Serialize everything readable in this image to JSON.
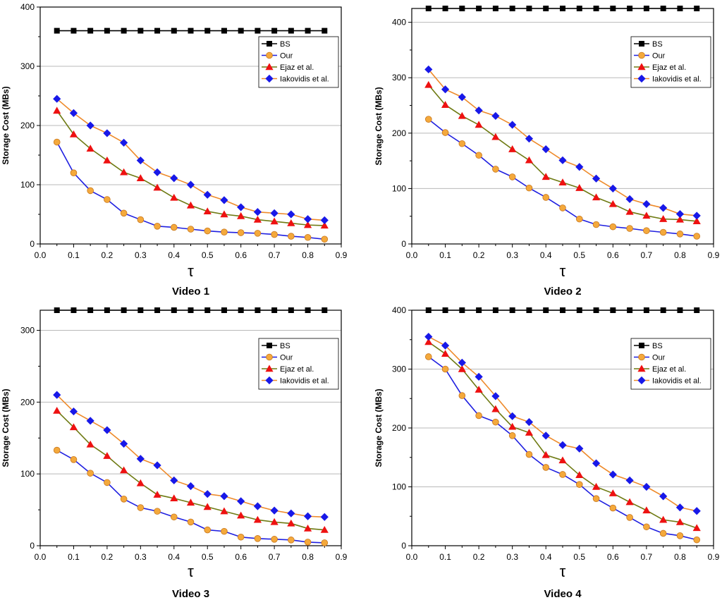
{
  "chart_data": [
    {
      "type": "line",
      "title": "Video 1",
      "xlabel": "τ",
      "ylabel": "Storage Cost (MBs)",
      "xlim": [
        0.0,
        0.9
      ],
      "ylim": [
        0,
        400
      ],
      "xticks": [
        "0.0",
        "0.1",
        "0.2",
        "0.3",
        "0.4",
        "0.5",
        "0.6",
        "0.7",
        "0.8",
        "0.9"
      ],
      "yticks": [
        "0",
        "100",
        "200",
        "300",
        "400"
      ],
      "legend_position": "top-right",
      "x": [
        0.05,
        0.1,
        0.15,
        0.2,
        0.25,
        0.3,
        0.35,
        0.4,
        0.45,
        0.5,
        0.55,
        0.6,
        0.65,
        0.7,
        0.75,
        0.8,
        0.85
      ],
      "series": [
        {
          "name": "BS",
          "values": [
            360,
            360,
            360,
            360,
            360,
            360,
            360,
            360,
            360,
            360,
            360,
            360,
            360,
            360,
            360,
            360,
            360
          ]
        },
        {
          "name": "Our",
          "values": [
            172,
            120,
            90,
            75,
            52,
            41,
            30,
            28,
            25,
            22,
            20,
            19,
            18,
            16,
            13,
            11,
            8
          ]
        },
        {
          "name": "Ejaz et al.",
          "values": [
            225,
            185,
            161,
            141,
            121,
            111,
            95,
            78,
            65,
            55,
            50,
            47,
            41,
            38,
            35,
            32,
            31
          ]
        },
        {
          "name": "Iakovidis  et al.",
          "values": [
            245,
            221,
            200,
            187,
            171,
            141,
            121,
            111,
            100,
            83,
            74,
            62,
            54,
            52,
            50,
            42,
            40
          ]
        }
      ]
    },
    {
      "type": "line",
      "title": "Video 2",
      "xlabel": "τ",
      "ylabel": "Storage Cost (MBs)",
      "xlim": [
        0.0,
        0.9
      ],
      "ylim": [
        0,
        425
      ],
      "xticks": [
        "0.0",
        "0.1",
        "0.2",
        "0.3",
        "0.4",
        "0.5",
        "0.6",
        "0.7",
        "0.8",
        "0.9"
      ],
      "yticks": [
        "0",
        "100",
        "200",
        "300",
        "400"
      ],
      "legend_position": "top-right",
      "x": [
        0.05,
        0.1,
        0.15,
        0.2,
        0.25,
        0.3,
        0.35,
        0.4,
        0.45,
        0.5,
        0.55,
        0.6,
        0.65,
        0.7,
        0.75,
        0.8,
        0.85
      ],
      "series": [
        {
          "name": "BS",
          "values": [
            425,
            425,
            425,
            425,
            425,
            425,
            425,
            425,
            425,
            425,
            425,
            425,
            425,
            425,
            425,
            425,
            425
          ]
        },
        {
          "name": "Our",
          "values": [
            225,
            201,
            181,
            160,
            135,
            121,
            101,
            84,
            65,
            45,
            35,
            31,
            28,
            24,
            21,
            18,
            14
          ]
        },
        {
          "name": "Ejaz et al.",
          "values": [
            287,
            251,
            231,
            215,
            193,
            171,
            151,
            121,
            111,
            101,
            84,
            72,
            58,
            51,
            45,
            44,
            41
          ]
        },
        {
          "name": "Iakovidis  et al.",
          "values": [
            315,
            279,
            265,
            241,
            231,
            215,
            190,
            171,
            151,
            139,
            118,
            100,
            81,
            72,
            65,
            54,
            51
          ]
        }
      ]
    },
    {
      "type": "line",
      "title": "Video 3",
      "xlabel": "τ",
      "ylabel": "Storage Cost (MBs)",
      "xlim": [
        0.0,
        0.9
      ],
      "ylim": [
        0,
        328
      ],
      "xticks": [
        "0.0",
        "0.1",
        "0.2",
        "0.3",
        "0.4",
        "0.5",
        "0.6",
        "0.7",
        "0.8",
        "0.9"
      ],
      "yticks": [
        "0",
        "100",
        "200",
        "300"
      ],
      "legend_position": "top-right",
      "x": [
        0.05,
        0.1,
        0.15,
        0.2,
        0.25,
        0.3,
        0.35,
        0.4,
        0.45,
        0.5,
        0.55,
        0.6,
        0.65,
        0.7,
        0.75,
        0.8,
        0.85
      ],
      "series": [
        {
          "name": "BS",
          "values": [
            328,
            328,
            328,
            328,
            328,
            328,
            328,
            328,
            328,
            328,
            328,
            328,
            328,
            328,
            328,
            328,
            328
          ]
        },
        {
          "name": "Our",
          "values": [
            133,
            120,
            101,
            88,
            65,
            53,
            48,
            40,
            33,
            22,
            20,
            12,
            10,
            9,
            8,
            5,
            4
          ]
        },
        {
          "name": "Ejaz et al.",
          "values": [
            188,
            165,
            141,
            125,
            105,
            87,
            71,
            66,
            60,
            54,
            48,
            42,
            36,
            33,
            31,
            24,
            22
          ]
        },
        {
          "name": "Iakovidis  et al.",
          "values": [
            210,
            187,
            174,
            161,
            142,
            121,
            112,
            91,
            83,
            72,
            69,
            62,
            55,
            49,
            45,
            41,
            40
          ]
        }
      ]
    },
    {
      "type": "line",
      "title": "Video 4",
      "xlabel": "τ",
      "ylabel": "Storage Cost (MBs)",
      "xlim": [
        0.0,
        0.9
      ],
      "ylim": [
        0,
        400
      ],
      "xticks": [
        "0.0",
        "0.1",
        "0.2",
        "0.3",
        "0.4",
        "0.5",
        "0.6",
        "0.7",
        "0.8",
        "0.9"
      ],
      "yticks": [
        "0",
        "100",
        "200",
        "300",
        "400"
      ],
      "legend_position": "top-right",
      "x": [
        0.05,
        0.1,
        0.15,
        0.2,
        0.25,
        0.3,
        0.35,
        0.4,
        0.45,
        0.5,
        0.55,
        0.6,
        0.65,
        0.7,
        0.75,
        0.8,
        0.85
      ],
      "series": [
        {
          "name": "BS",
          "values": [
            400,
            400,
            400,
            400,
            400,
            400,
            400,
            400,
            400,
            400,
            400,
            400,
            400,
            400,
            400,
            400,
            400
          ]
        },
        {
          "name": "Our",
          "values": [
            321,
            300,
            255,
            221,
            210,
            187,
            155,
            133,
            121,
            104,
            80,
            64,
            48,
            32,
            21,
            17,
            10
          ]
        },
        {
          "name": "Ejaz et al.",
          "values": [
            346,
            326,
            300,
            265,
            232,
            202,
            192,
            154,
            145,
            120,
            100,
            89,
            74,
            60,
            44,
            40,
            30
          ]
        },
        {
          "name": "Iakovidis  et al.",
          "values": [
            355,
            340,
            311,
            287,
            254,
            220,
            210,
            187,
            171,
            165,
            140,
            121,
            111,
            100,
            84,
            65,
            59
          ]
        }
      ]
    }
  ],
  "series_styles": [
    {
      "name": "BS",
      "line_color": "#000000",
      "marker": "square",
      "marker_color": "#000000"
    },
    {
      "name": "Our",
      "line_color": "#1f1fe0",
      "marker": "circle",
      "marker_color": "#f4a93c"
    },
    {
      "name": "Ejaz et al.",
      "line_color": "#6e7a12",
      "marker": "triangle",
      "marker_color": "#ee1111"
    },
    {
      "name": "Iakovidis  et al.",
      "line_color": "#ee8a2a",
      "marker": "diamond",
      "marker_color": "#1818e8"
    }
  ],
  "grid_color": "#b9b9b9"
}
